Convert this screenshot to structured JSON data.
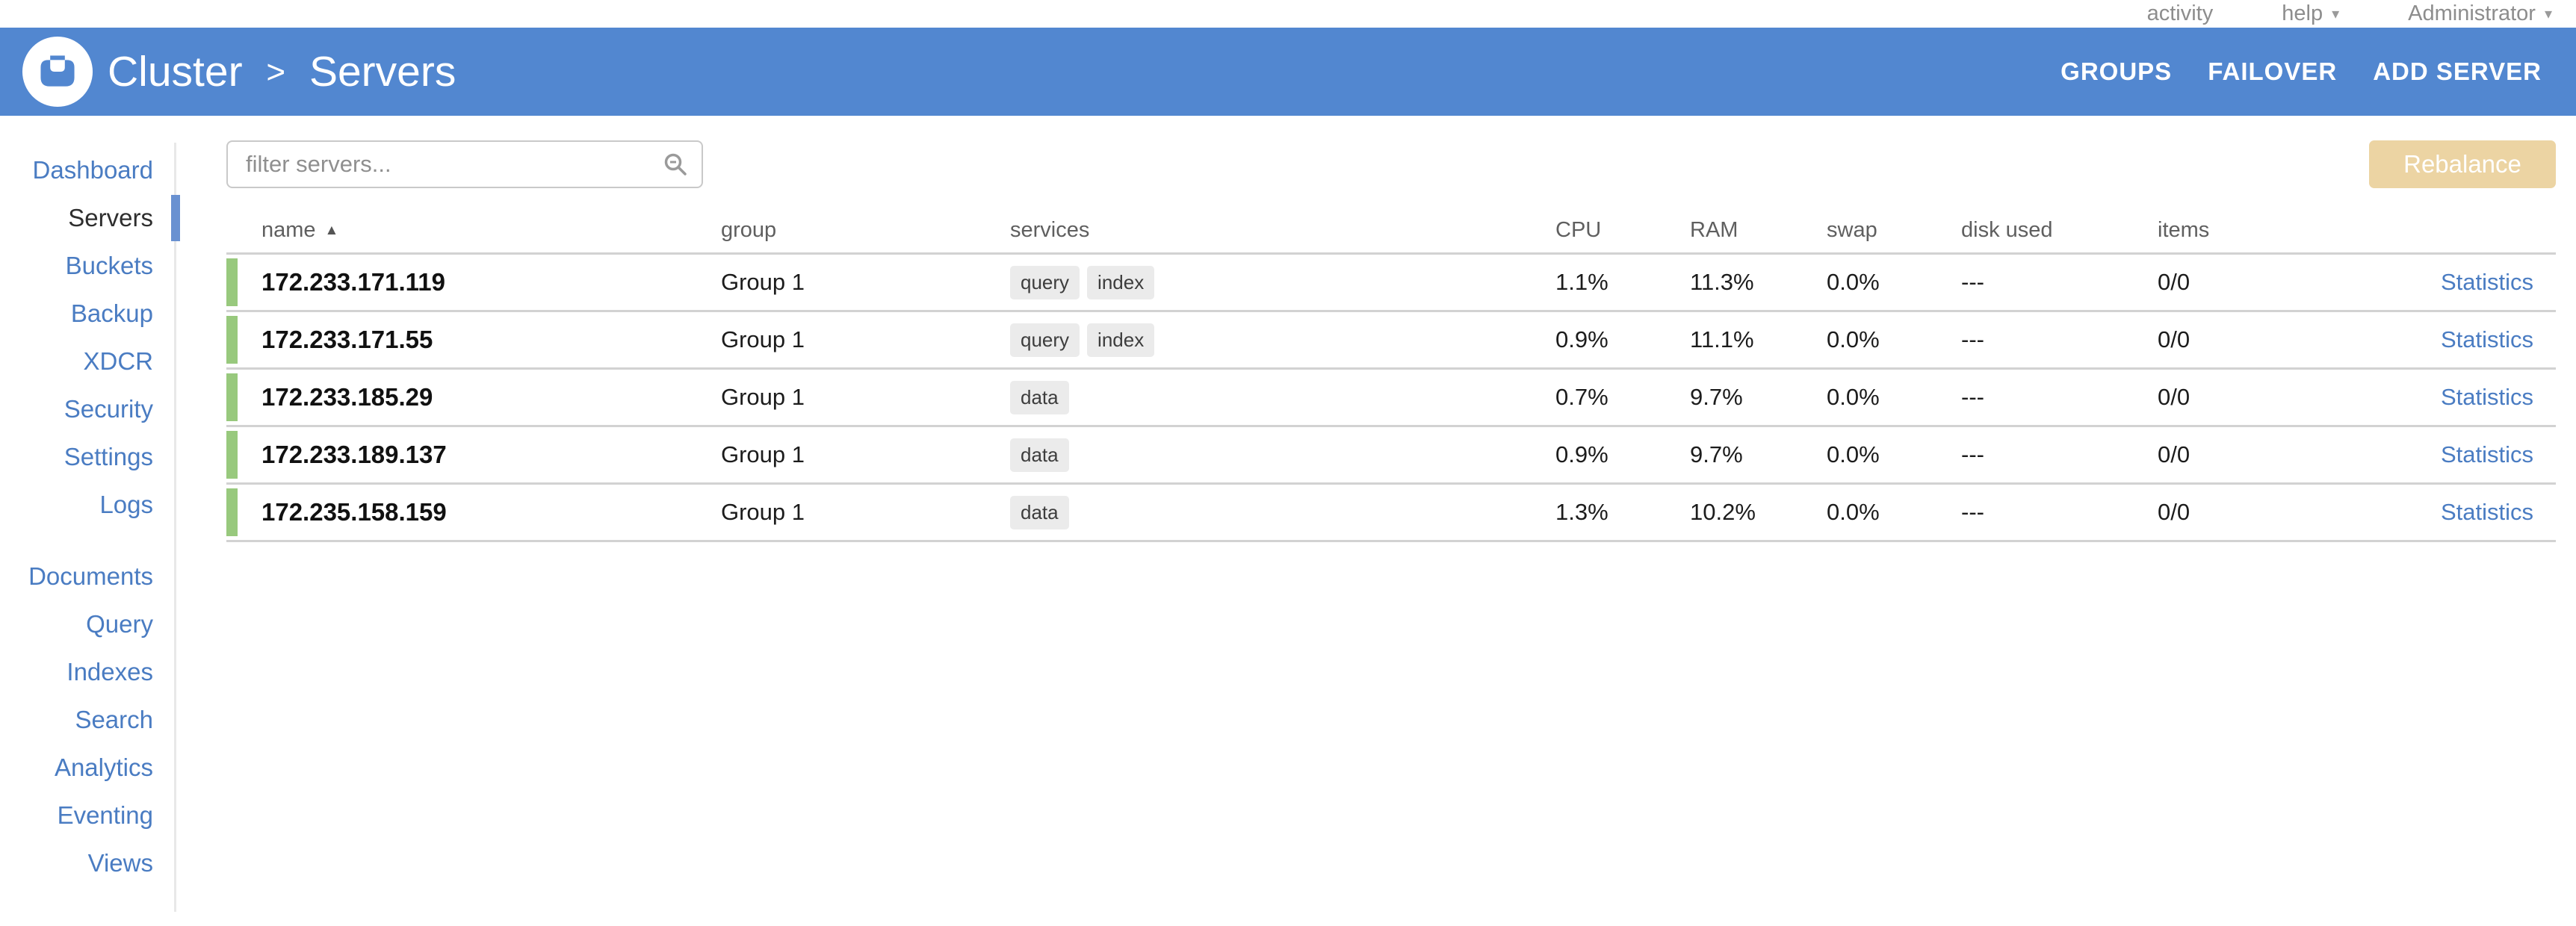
{
  "topbar": {
    "caret_glyph": "▾",
    "links": [
      {
        "label": "activity",
        "caret": false
      },
      {
        "label": "help",
        "caret": true
      },
      {
        "label": "Administrator",
        "caret": true
      }
    ]
  },
  "header": {
    "breadcrumb": {
      "root": "Cluster",
      "separator": ">",
      "current": "Servers"
    },
    "nav": [
      "GROUPS",
      "FAILOVER",
      "ADD SERVER"
    ]
  },
  "sidebar": {
    "primary": [
      {
        "label": "Dashboard",
        "active": false
      },
      {
        "label": "Servers",
        "active": true
      },
      {
        "label": "Buckets",
        "active": false
      },
      {
        "label": "Backup",
        "active": false
      },
      {
        "label": "XDCR",
        "active": false
      },
      {
        "label": "Security",
        "active": false
      },
      {
        "label": "Settings",
        "active": false
      },
      {
        "label": "Logs",
        "active": false
      }
    ],
    "secondary": [
      {
        "label": "Documents",
        "active": false
      },
      {
        "label": "Query",
        "active": false
      },
      {
        "label": "Indexes",
        "active": false
      },
      {
        "label": "Search",
        "active": false
      },
      {
        "label": "Analytics",
        "active": false
      },
      {
        "label": "Eventing",
        "active": false
      },
      {
        "label": "Views",
        "active": false
      }
    ]
  },
  "toolbar": {
    "filter_placeholder": "filter servers...",
    "rebalance_label": "Rebalance"
  },
  "table": {
    "headers": {
      "name": "name",
      "sort_indicator": "▲",
      "group": "group",
      "services": "services",
      "cpu": "CPU",
      "ram": "RAM",
      "swap": "swap",
      "disk_used": "disk used",
      "items": "items"
    },
    "rows": [
      {
        "name": "172.233.171.119",
        "group": "Group 1",
        "services": [
          "query",
          "index"
        ],
        "cpu": "1.1%",
        "ram": "11.3%",
        "swap": "0.0%",
        "disk_used": "---",
        "items": "0/0",
        "action": "Statistics"
      },
      {
        "name": "172.233.171.55",
        "group": "Group 1",
        "services": [
          "query",
          "index"
        ],
        "cpu": "0.9%",
        "ram": "11.1%",
        "swap": "0.0%",
        "disk_used": "---",
        "items": "0/0",
        "action": "Statistics"
      },
      {
        "name": "172.233.185.29",
        "group": "Group 1",
        "services": [
          "data"
        ],
        "cpu": "0.7%",
        "ram": "9.7%",
        "swap": "0.0%",
        "disk_used": "---",
        "items": "0/0",
        "action": "Statistics"
      },
      {
        "name": "172.233.189.137",
        "group": "Group 1",
        "services": [
          "data"
        ],
        "cpu": "0.9%",
        "ram": "9.7%",
        "swap": "0.0%",
        "disk_used": "---",
        "items": "0/0",
        "action": "Statistics"
      },
      {
        "name": "172.235.158.159",
        "group": "Group 1",
        "services": [
          "data"
        ],
        "cpu": "1.3%",
        "ram": "10.2%",
        "swap": "0.0%",
        "disk_used": "---",
        "items": "0/0",
        "action": "Statistics"
      }
    ]
  },
  "colors": {
    "header_blue": "#5287D0",
    "link_blue": "#4A7CC2",
    "health_green": "#98C97D",
    "rebalance_tan": "#ECD4A3",
    "indicator_blue": "#6991D1"
  }
}
